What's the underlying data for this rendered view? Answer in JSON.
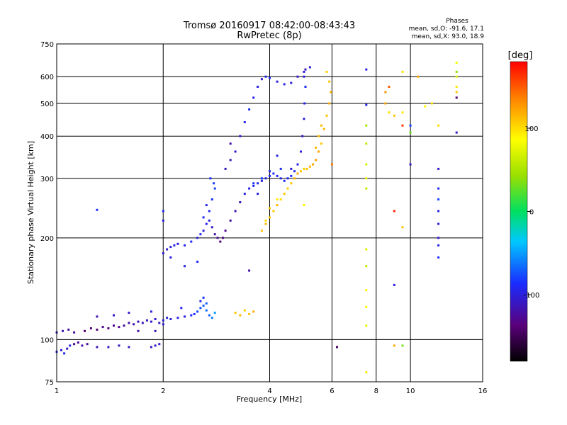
{
  "chart_data": {
    "type": "scatter",
    "title": "Tromsø 20160917 08:42:00-08:43:43",
    "subtitle": "RwPretec (8p)",
    "xlabel": "Frequency [MHz]",
    "ylabel": "Stationary phase Virtual Height [km]",
    "x_scale": "log",
    "y_scale": "log",
    "xlim": [
      1,
      16
    ],
    "ylim": [
      75,
      750
    ],
    "x_ticks": [
      1,
      2,
      4,
      6,
      8,
      10,
      16
    ],
    "y_ticks": [
      75,
      100,
      200,
      300,
      400,
      500,
      600,
      750
    ],
    "grid": true,
    "stats": {
      "heading": "Phases",
      "line_o": "mean, sd,O: -91.6, 17.1",
      "line_x": "mean, sd,X:  93.0, 18.9"
    },
    "colorbar": {
      "label": "[deg]",
      "ticks": [
        100,
        0,
        -100
      ],
      "range": [
        -180,
        180
      ]
    },
    "series": [
      {
        "points": [
          [
            1.0,
            92,
            -100
          ],
          [
            1.03,
            93,
            -100
          ],
          [
            1.05,
            91,
            -95
          ],
          [
            1.07,
            94,
            -105
          ],
          [
            1.09,
            96,
            -100
          ],
          [
            1.12,
            97,
            -130
          ],
          [
            1.15,
            98,
            -125
          ],
          [
            1.18,
            96,
            -120
          ],
          [
            1.22,
            97,
            -125
          ],
          [
            1.3,
            95,
            -115
          ],
          [
            1.4,
            95,
            -110
          ],
          [
            1.5,
            96,
            -112
          ],
          [
            1.6,
            95,
            -110
          ],
          [
            1.9,
            96,
            -110
          ],
          [
            1.95,
            97,
            -105
          ],
          [
            1.85,
            95,
            -108
          ],
          [
            1.0,
            105,
            -110
          ],
          [
            1.04,
            106,
            -115
          ],
          [
            1.08,
            107,
            -120
          ],
          [
            1.12,
            105,
            -125
          ],
          [
            1.2,
            106,
            -140
          ],
          [
            1.25,
            108,
            -135
          ],
          [
            1.3,
            107,
            -140
          ],
          [
            1.35,
            109,
            -130
          ],
          [
            1.4,
            108,
            -135
          ],
          [
            1.45,
            110,
            -130
          ],
          [
            1.5,
            109,
            -128
          ],
          [
            1.55,
            110,
            -125
          ],
          [
            1.6,
            112,
            -120
          ],
          [
            1.65,
            111,
            -118
          ],
          [
            1.7,
            113,
            -115
          ],
          [
            1.75,
            112,
            -112
          ],
          [
            1.8,
            114,
            -110
          ],
          [
            1.85,
            113,
            -108
          ],
          [
            1.9,
            115,
            -105
          ],
          [
            1.95,
            112,
            -110
          ],
          [
            2.0,
            114,
            -100
          ],
          [
            2.05,
            116,
            -100
          ],
          [
            2.1,
            115,
            -98
          ],
          [
            2.2,
            116,
            -95
          ],
          [
            2.3,
            117,
            -100
          ],
          [
            2.4,
            118,
            -90
          ],
          [
            2.45,
            119,
            -85
          ],
          [
            2.5,
            121,
            -80
          ],
          [
            2.55,
            124,
            -75
          ],
          [
            2.6,
            126,
            -70
          ],
          [
            2.65,
            122,
            -65
          ],
          [
            2.7,
            118,
            -70
          ],
          [
            2.75,
            116,
            -60
          ],
          [
            2.8,
            120,
            -50
          ],
          [
            1.3,
            117,
            -115
          ],
          [
            1.45,
            118,
            -108
          ],
          [
            1.6,
            120,
            -105
          ],
          [
            1.85,
            121,
            -100
          ],
          [
            2.25,
            124,
            -95
          ],
          [
            2.6,
            133,
            -85
          ],
          [
            2.55,
            130,
            -90
          ],
          [
            2.65,
            128,
            -70
          ],
          [
            1.7,
            106,
            -120
          ],
          [
            1.9,
            106,
            -115
          ],
          [
            2.0,
            111,
            -100
          ],
          [
            2.0,
            180,
            -100
          ],
          [
            2.05,
            185,
            -105
          ],
          [
            2.1,
            188,
            -100
          ],
          [
            2.15,
            190,
            -95
          ],
          [
            2.2,
            192,
            -100
          ],
          [
            2.3,
            190,
            -95
          ],
          [
            2.4,
            195,
            -90
          ],
          [
            2.5,
            200,
            -95
          ],
          [
            2.55,
            205,
            -90
          ],
          [
            2.6,
            210,
            -100
          ],
          [
            2.65,
            220,
            -95
          ],
          [
            2.7,
            240,
            -90
          ],
          [
            2.75,
            260,
            -85
          ],
          [
            2.8,
            280,
            -80
          ],
          [
            2.72,
            300,
            -85
          ],
          [
            2.78,
            290,
            -80
          ],
          [
            2.6,
            230,
            -90
          ],
          [
            2.65,
            250,
            -95
          ],
          [
            2.7,
            225,
            -100
          ],
          [
            2.75,
            215,
            -110
          ],
          [
            2.8,
            205,
            -120
          ],
          [
            2.85,
            200,
            -125
          ],
          [
            2.9,
            195,
            -135
          ],
          [
            2.95,
            200,
            -130
          ],
          [
            3.0,
            210,
            -125
          ],
          [
            3.1,
            225,
            -120
          ],
          [
            3.2,
            240,
            -115
          ],
          [
            3.3,
            255,
            -110
          ],
          [
            3.4,
            270,
            -100
          ],
          [
            3.5,
            280,
            -95
          ],
          [
            3.6,
            285,
            -90
          ],
          [
            3.7,
            290,
            -95
          ],
          [
            3.8,
            295,
            -100
          ],
          [
            3.9,
            300,
            -95
          ],
          [
            4.0,
            305,
            -90
          ],
          [
            4.1,
            310,
            -85
          ],
          [
            4.2,
            305,
            -88
          ],
          [
            4.3,
            300,
            -95
          ],
          [
            4.4,
            295,
            -92
          ],
          [
            4.5,
            300,
            -90
          ],
          [
            4.6,
            305,
            -88
          ],
          [
            4.7,
            315,
            -90
          ],
          [
            4.8,
            330,
            -95
          ],
          [
            4.9,
            360,
            -100
          ],
          [
            4.95,
            400,
            -105
          ],
          [
            5.0,
            450,
            -100
          ],
          [
            5.02,
            500,
            -95
          ],
          [
            5.05,
            560,
            -90
          ],
          [
            5.0,
            600,
            -100
          ],
          [
            5.05,
            630,
            -110
          ],
          [
            3.6,
            290,
            -85
          ],
          [
            3.8,
            300,
            -80
          ],
          [
            4.0,
            315,
            -90
          ],
          [
            4.3,
            320,
            -85
          ],
          [
            3.0,
            320,
            -110
          ],
          [
            3.1,
            340,
            -115
          ],
          [
            3.2,
            360,
            -105
          ],
          [
            3.3,
            400,
            -100
          ],
          [
            3.4,
            440,
            -95
          ],
          [
            3.5,
            480,
            -90
          ],
          [
            3.6,
            520,
            -95
          ],
          [
            3.7,
            560,
            -100
          ],
          [
            3.8,
            590,
            -105
          ],
          [
            3.9,
            600,
            -95
          ],
          [
            4.0,
            595,
            -90
          ],
          [
            4.2,
            580,
            -100
          ],
          [
            4.4,
            570,
            -95
          ],
          [
            4.6,
            575,
            -100
          ],
          [
            4.8,
            600,
            -110
          ],
          [
            5.0,
            620,
            -105
          ],
          [
            5.2,
            640,
            -100
          ],
          [
            2.0,
            240,
            -90
          ],
          [
            2.0,
            225,
            -95
          ],
          [
            1.3,
            242,
            -85
          ],
          [
            2.5,
            170,
            -90
          ],
          [
            2.3,
            165,
            -95
          ],
          [
            2.1,
            175,
            -100
          ],
          [
            7.5,
            630,
            -100
          ],
          [
            7.5,
            495,
            -95
          ],
          [
            10.0,
            430,
            -80
          ],
          [
            10.0,
            330,
            -110
          ],
          [
            12.0,
            320,
            -105
          ],
          [
            12.0,
            280,
            -90
          ],
          [
            12.0,
            260,
            -80
          ],
          [
            12.0,
            240,
            -100
          ],
          [
            12.0,
            220,
            -100
          ],
          [
            12.0,
            200,
            -105
          ],
          [
            12.0,
            190,
            -95
          ],
          [
            12.0,
            175,
            -85
          ],
          [
            9.0,
            145,
            -100
          ],
          [
            13.5,
            410,
            -110
          ],
          [
            13.5,
            520,
            -140
          ],
          [
            6.2,
            95,
            -150
          ],
          [
            3.5,
            160,
            -120
          ],
          [
            3.1,
            380,
            -120
          ],
          [
            4.2,
            350,
            -95
          ],
          [
            3.7,
            270,
            -100
          ],
          [
            4.6,
            320,
            -100
          ]
        ]
      },
      {
        "points": [
          [
            3.8,
            210,
            110
          ],
          [
            3.9,
            220,
            115
          ],
          [
            4.0,
            230,
            105
          ],
          [
            4.1,
            240,
            110
          ],
          [
            4.2,
            250,
            115
          ],
          [
            4.3,
            260,
            100
          ],
          [
            4.4,
            270,
            110
          ],
          [
            4.5,
            280,
            105
          ],
          [
            4.6,
            290,
            110
          ],
          [
            4.7,
            300,
            115
          ],
          [
            4.8,
            310,
            120
          ],
          [
            4.9,
            315,
            110
          ],
          [
            5.0,
            320,
            105
          ],
          [
            5.1,
            320,
            110
          ],
          [
            5.2,
            325,
            115
          ],
          [
            5.3,
            330,
            120
          ],
          [
            5.4,
            340,
            125
          ],
          [
            5.5,
            360,
            120
          ],
          [
            5.6,
            380,
            110
          ],
          [
            5.7,
            420,
            115
          ],
          [
            5.8,
            460,
            110
          ],
          [
            5.9,
            500,
            120
          ],
          [
            5.95,
            540,
            115
          ],
          [
            5.9,
            580,
            110
          ],
          [
            5.8,
            620,
            105
          ],
          [
            5.6,
            430,
            115
          ],
          [
            5.5,
            400,
            110
          ],
          [
            5.4,
            370,
            115
          ],
          [
            3.9,
            225,
            100
          ],
          [
            4.0,
            245,
            110
          ],
          [
            4.2,
            260,
            95
          ],
          [
            3.2,
            120,
            110
          ],
          [
            3.3,
            118,
            115
          ],
          [
            3.4,
            122,
            105
          ],
          [
            3.5,
            119,
            110
          ],
          [
            3.6,
            121,
            120
          ],
          [
            7.5,
            80,
            95
          ],
          [
            7.5,
            110,
            75
          ],
          [
            7.5,
            125,
            85
          ],
          [
            7.5,
            140,
            90
          ],
          [
            7.5,
            165,
            60
          ],
          [
            7.5,
            185,
            70
          ],
          [
            7.5,
            280,
            60
          ],
          [
            7.5,
            300,
            80
          ],
          [
            7.5,
            330,
            70
          ],
          [
            7.5,
            380,
            60
          ],
          [
            7.5,
            430,
            50
          ],
          [
            8.5,
            500,
            120
          ],
          [
            8.5,
            540,
            130
          ],
          [
            8.7,
            470,
            100
          ],
          [
            8.7,
            560,
            150
          ],
          [
            9.0,
            460,
            110
          ],
          [
            9.5,
            430,
            160
          ],
          [
            9.5,
            470,
            95
          ],
          [
            9.5,
            620,
            100
          ],
          [
            10.0,
            410,
            30
          ],
          [
            11.0,
            490,
            90
          ],
          [
            11.5,
            500,
            100
          ],
          [
            12.0,
            430,
            100
          ],
          [
            13.5,
            540,
            110
          ],
          [
            13.5,
            560,
            95
          ],
          [
            13.5,
            620,
            40
          ],
          [
            13.5,
            660,
            80
          ],
          [
            13.5,
            600,
            70
          ],
          [
            10.5,
            600,
            120
          ],
          [
            9.0,
            240,
            170
          ],
          [
            9.5,
            215,
            110
          ],
          [
            9.0,
            96,
            120
          ],
          [
            9.5,
            96,
            35
          ],
          [
            6.0,
            330,
            140
          ],
          [
            5.0,
            250,
            90
          ]
        ]
      }
    ]
  }
}
